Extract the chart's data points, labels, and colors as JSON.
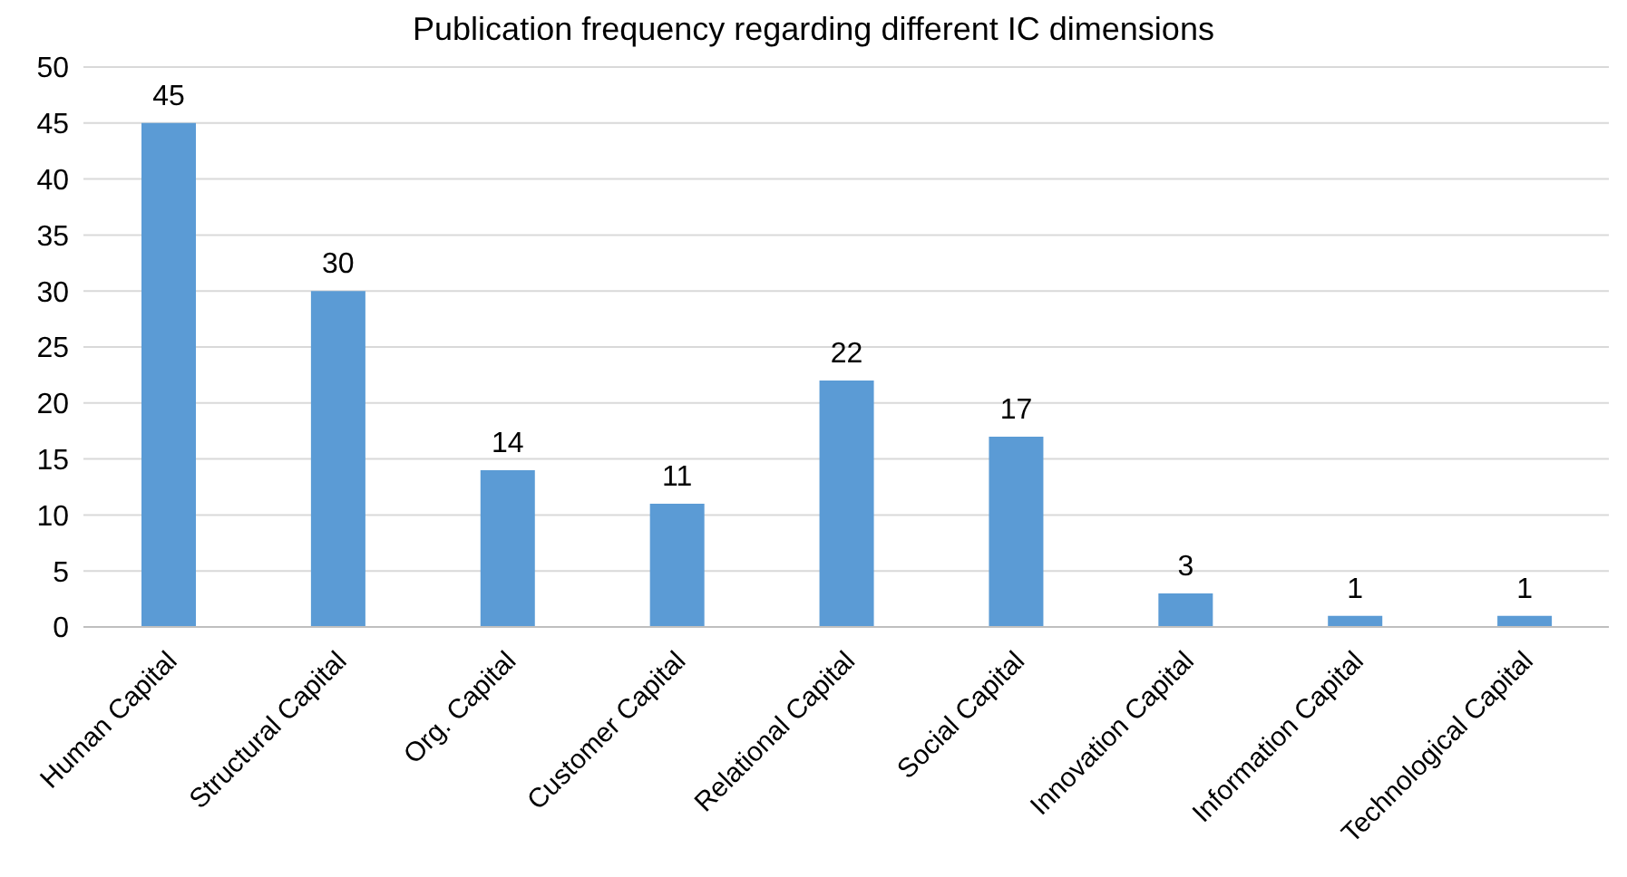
{
  "chart_data": {
    "type": "bar",
    "title": "Publication frequency regarding different IC dimensions",
    "categories": [
      "Human Capital",
      "Structural Capital",
      "Org. Capital",
      "Customer Capital",
      "Relational Capital",
      "Social Capital",
      "Innovation Capital",
      "Information Capital",
      "Technological Capital"
    ],
    "values": [
      45,
      30,
      14,
      11,
      22,
      17,
      3,
      1,
      1
    ],
    "color": "#5b9bd5",
    "ylim": [
      0,
      50
    ],
    "yticks": [
      0,
      5,
      10,
      15,
      20,
      25,
      30,
      35,
      40,
      45,
      50
    ],
    "grid": "y",
    "data_labels": true
  }
}
